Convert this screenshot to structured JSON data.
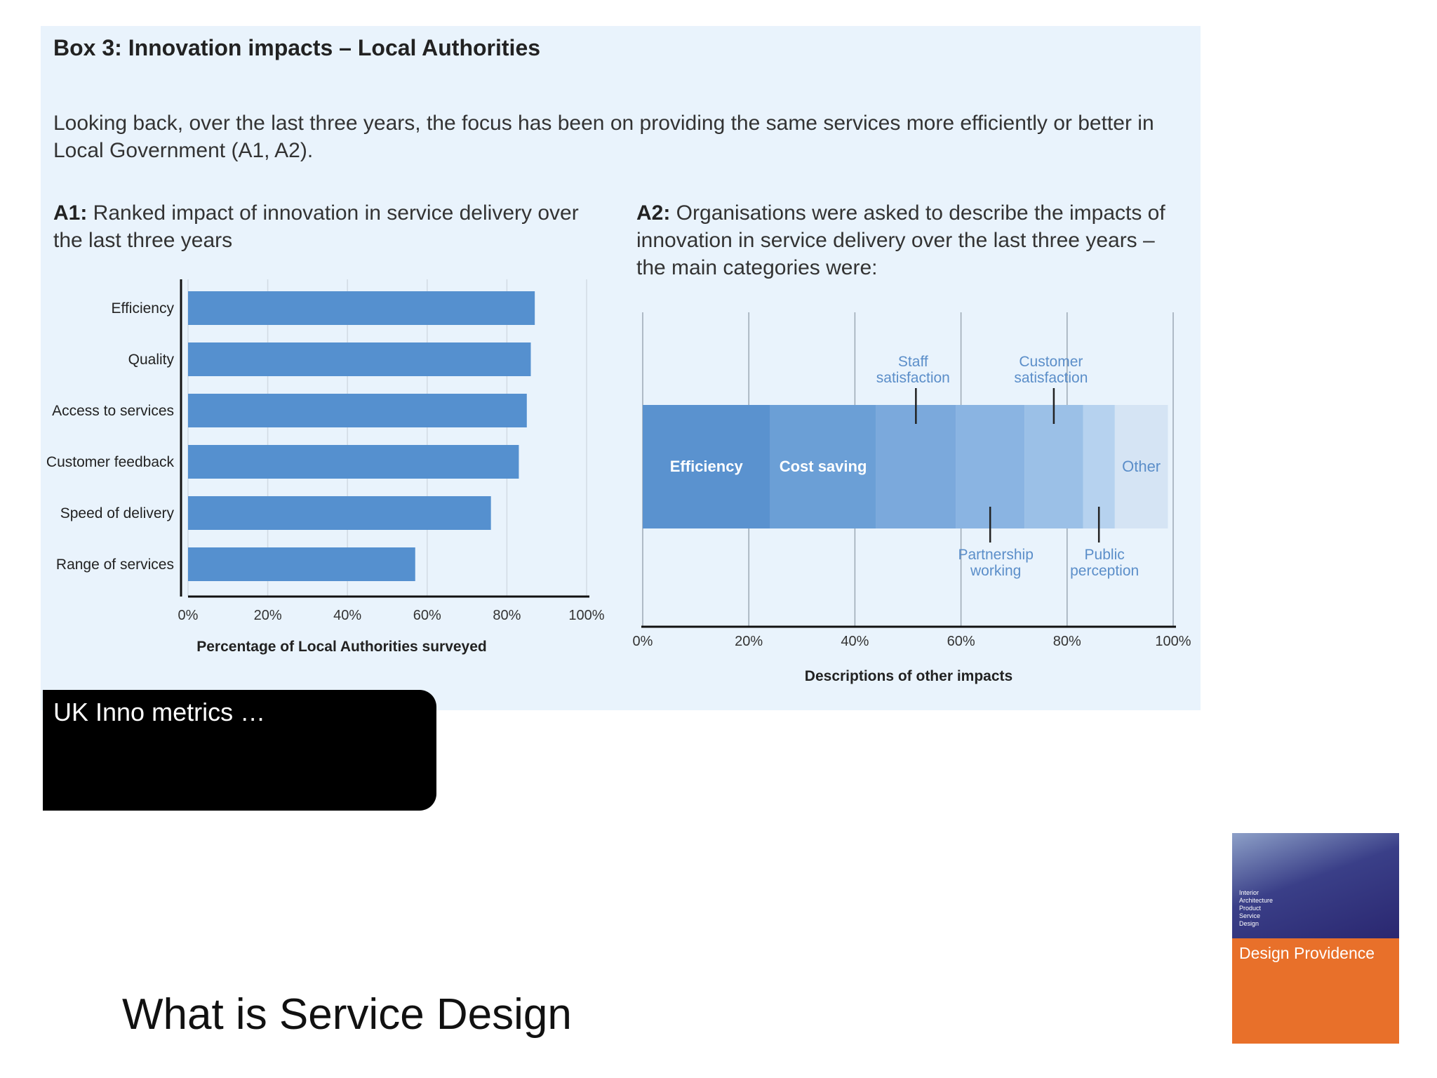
{
  "box": {
    "title": "Box 3: Innovation impacts – Local Authorities",
    "intro": "Looking back, over the last three years, the focus has been on providing the same services more efficiently or better in Local Government (A1, A2).",
    "a1_prefix": "A1:",
    "a1_caption": " Ranked impact of innovation in service delivery over the last three years",
    "a2_prefix": "A2:",
    "a2_caption": " Organisations were asked to describe the impacts of innovation in service delivery over the last three years – the main categories were:"
  },
  "chart_data": [
    {
      "type": "bar",
      "orientation": "horizontal",
      "categories": [
        "Efficiency",
        "Quality",
        "Access to services",
        "Customer feedback",
        "Speed of delivery",
        "Range of services"
      ],
      "values": [
        87,
        86,
        85,
        83,
        76,
        57
      ],
      "xlabel": "Percentage of Local Authorities surveyed",
      "ylabel": "",
      "xlim": [
        0,
        100
      ],
      "tick_labels": [
        "0%",
        "20%",
        "40%",
        "60%",
        "80%",
        "100%"
      ],
      "grid": true,
      "bar_color": "#5590cf"
    },
    {
      "type": "bar",
      "orientation": "horizontal-stacked",
      "segments": [
        {
          "name": "Efficiency",
          "value": 24,
          "color": "#5a92cf",
          "label_pos": "inside"
        },
        {
          "name": "Cost saving",
          "value": 20,
          "color": "#6b9fd6",
          "label_pos": "inside"
        },
        {
          "name": "Staff satisfaction",
          "value": 15,
          "color": "#7ba9dc",
          "label_pos": "above"
        },
        {
          "name": "Partnership working",
          "value": 13,
          "color": "#8ab4e2",
          "label_pos": "below"
        },
        {
          "name": "Customer satisfaction",
          "value": 11,
          "color": "#9bc0e7",
          "label_pos": "above"
        },
        {
          "name": "Public perception",
          "value": 6,
          "color": "#b6d2ef",
          "label_pos": "below"
        },
        {
          "name": "Other",
          "value": 10,
          "color": "#d5e4f4",
          "label_pos": "inside"
        }
      ],
      "xlabel": "Descriptions of other impacts",
      "xlim": [
        0,
        100
      ],
      "tick_labels": [
        "0%",
        "20%",
        "40%",
        "60%",
        "80%",
        "100%"
      ],
      "grid": true
    }
  ],
  "overlay": {
    "label": "UK Inno metrics …"
  },
  "footer": {
    "title": "What is Service Design"
  },
  "book": {
    "lines": [
      "Interior",
      "Architecture",
      "Product",
      "Service",
      "Design"
    ],
    "brand": "Design Providence"
  }
}
